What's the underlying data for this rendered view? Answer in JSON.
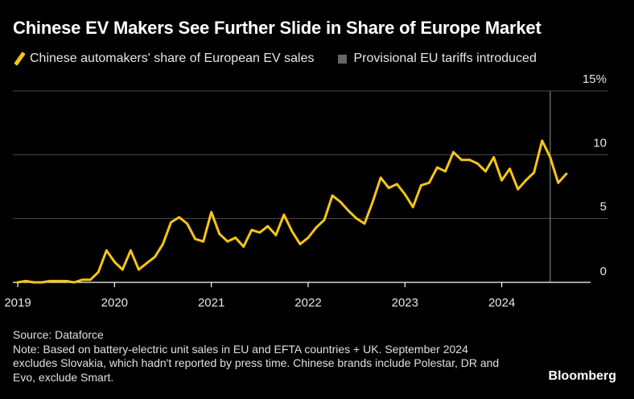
{
  "title": "Chinese EV Makers See Further Slide in Share of Europe Market",
  "legend": {
    "series_label": "Chinese automakers' share of European EV sales",
    "event_label": "Provisional EU tariffs introduced"
  },
  "colors": {
    "series": "#f5c518",
    "event": "#666666",
    "grid": "#4a4a4a",
    "axis": "#ffffff"
  },
  "chart_data": {
    "type": "line",
    "title": "Chinese EV Makers See Further Slide in Share of Europe Market",
    "ylabel": "%",
    "ylim": [
      0,
      15
    ],
    "y_ticks": [
      {
        "value": 15,
        "label": "15%"
      },
      {
        "value": 10,
        "label": "10"
      },
      {
        "value": 5,
        "label": "5"
      },
      {
        "value": 0,
        "label": "0"
      }
    ],
    "x_ticks": [
      {
        "value": 2019,
        "label": "2019"
      },
      {
        "value": 2020,
        "label": "2020"
      },
      {
        "value": 2021,
        "label": "2021"
      },
      {
        "value": 2022,
        "label": "2022"
      },
      {
        "value": 2023,
        "label": "2023"
      },
      {
        "value": 2024,
        "label": "2024"
      }
    ],
    "xlim": [
      2018.95,
      2025.1
    ],
    "event_line": {
      "x": 2024.5,
      "label": "Provisional EU tariffs introduced"
    },
    "series": [
      {
        "name": "Chinese automakers' share of European EV sales",
        "x": [
          2019.0,
          2019.083,
          2019.167,
          2019.25,
          2019.333,
          2019.417,
          2019.5,
          2019.583,
          2019.667,
          2019.75,
          2019.833,
          2019.917,
          2020.0,
          2020.083,
          2020.167,
          2020.25,
          2020.333,
          2020.417,
          2020.5,
          2020.583,
          2020.667,
          2020.75,
          2020.833,
          2020.917,
          2021.0,
          2021.083,
          2021.167,
          2021.25,
          2021.333,
          2021.417,
          2021.5,
          2021.583,
          2021.667,
          2021.75,
          2021.833,
          2021.917,
          2022.0,
          2022.083,
          2022.167,
          2022.25,
          2022.333,
          2022.417,
          2022.5,
          2022.583,
          2022.667,
          2022.75,
          2022.833,
          2022.917,
          2023.0,
          2023.083,
          2023.167,
          2023.25,
          2023.333,
          2023.417,
          2023.5,
          2023.583,
          2023.667,
          2023.75,
          2023.833,
          2023.917,
          2024.0,
          2024.083,
          2024.167,
          2024.25,
          2024.333,
          2024.417,
          2024.5,
          2024.583,
          2024.667
        ],
        "values": [
          0.0,
          0.1,
          0.0,
          0.0,
          0.1,
          0.1,
          0.1,
          0.0,
          0.2,
          0.2,
          0.8,
          2.5,
          1.6,
          1.0,
          2.5,
          1.0,
          1.5,
          2.0,
          3.0,
          4.7,
          5.1,
          4.6,
          3.4,
          3.2,
          5.5,
          3.8,
          3.2,
          3.5,
          2.8,
          4.1,
          3.9,
          4.4,
          3.7,
          5.3,
          4.0,
          3.0,
          3.5,
          4.3,
          4.9,
          6.8,
          6.3,
          5.6,
          5.0,
          4.6,
          6.3,
          8.2,
          7.4,
          7.7,
          6.9,
          5.9,
          7.6,
          7.8,
          9.0,
          8.7,
          10.2,
          9.6,
          9.6,
          9.3,
          8.7,
          9.8,
          8.0,
          8.9,
          7.3,
          8.0,
          8.6,
          11.1,
          9.8,
          7.8,
          8.5
        ]
      }
    ]
  },
  "footer": {
    "source": "Source: Dataforce",
    "note": "Note: Based on battery-electric unit sales in EU and EFTA countries + UK. September 2024 excludes Slovakia, which hadn't reported by press time. Chinese brands include Polestar, DR and Evo, exclude Smart."
  },
  "brand": "Bloomberg"
}
